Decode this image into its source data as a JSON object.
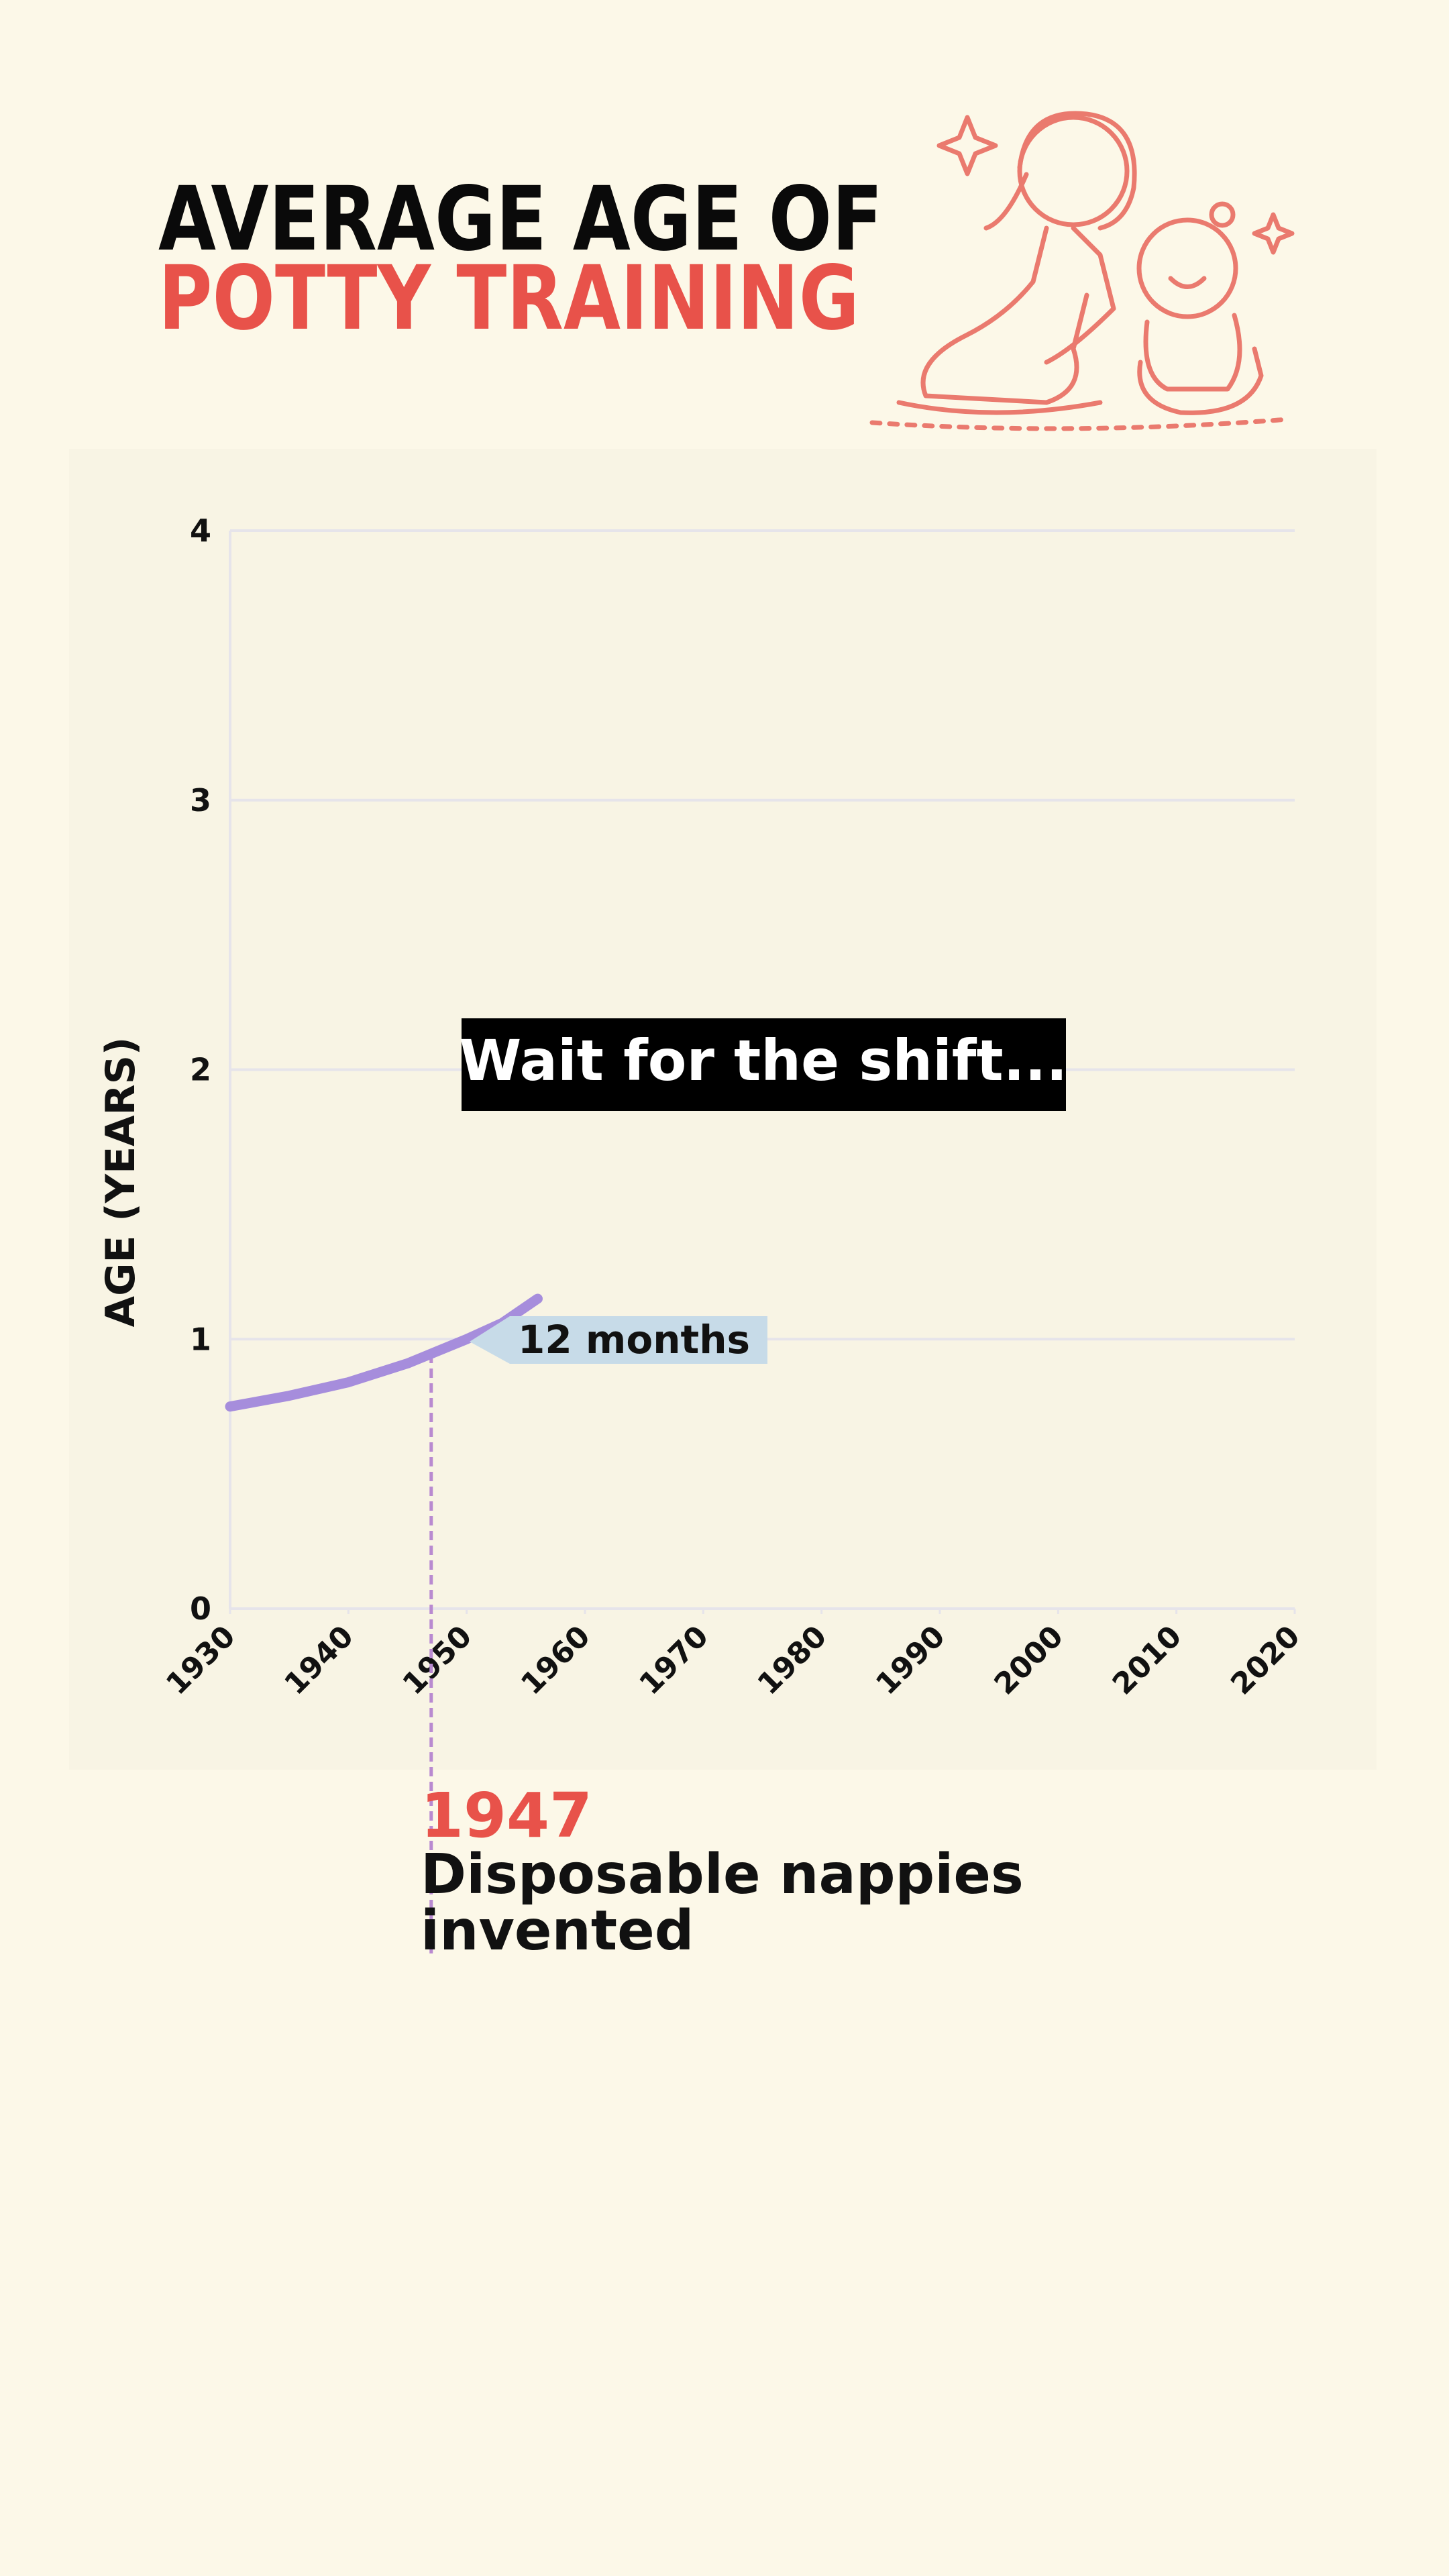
{
  "chart_data": {
    "type": "line",
    "title": [
      "AVERAGE AGE OF",
      "POTTY TRAINING"
    ],
    "title_colors": [
      "#0a0a0a",
      "#e8524a"
    ],
    "y_label": "AGE (YEARS)",
    "x": [
      1930,
      1935,
      1940,
      1945,
      1950,
      1953,
      1956
    ],
    "values": [
      0.75,
      0.79,
      0.84,
      0.91,
      1.0,
      1.06,
      1.15
    ],
    "color": "#a68ddc",
    "xlim": [
      1930,
      2020
    ],
    "ylim": [
      0,
      4
    ],
    "xticks": [
      1930,
      1940,
      1950,
      1960,
      1970,
      1980,
      1990,
      2000,
      2010,
      2020
    ],
    "yticks": [
      0,
      1,
      2,
      3,
      4
    ],
    "grid": true,
    "banner": "Wait for the shift...",
    "callout": "12 months",
    "marker": {
      "x": 1947,
      "text": [
        "Disposable nappies",
        "invented"
      ],
      "color": "#e8524a"
    }
  }
}
